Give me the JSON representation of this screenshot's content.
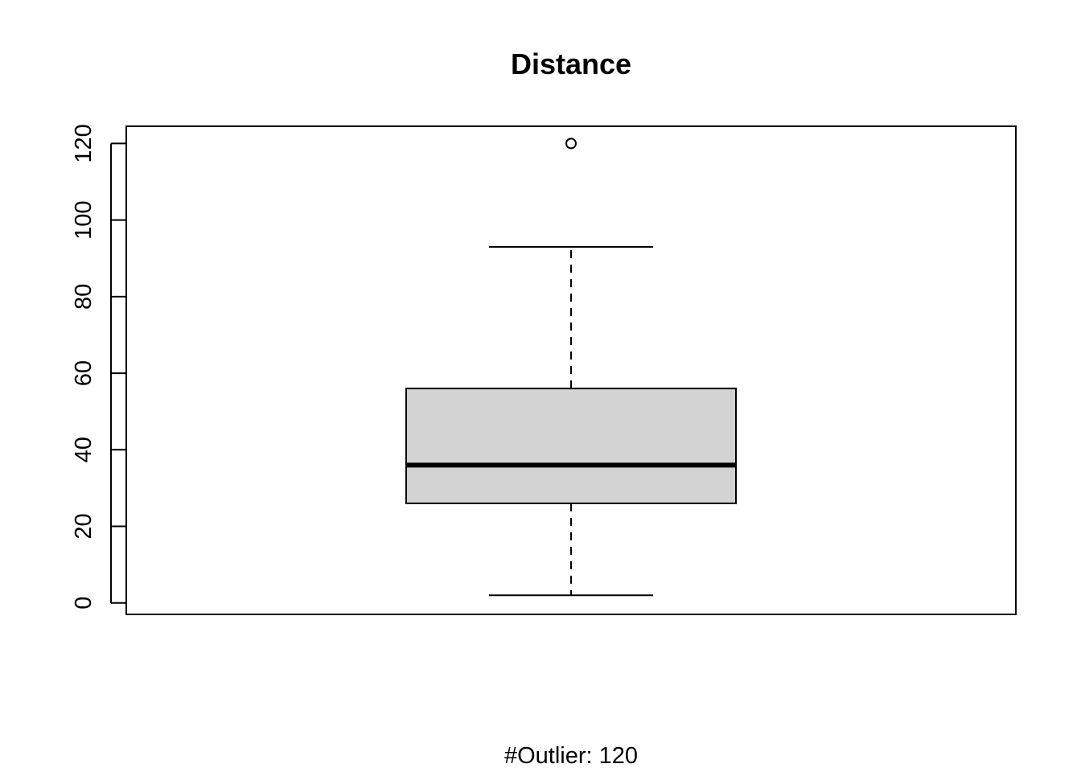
{
  "chart_data": {
    "type": "boxplot",
    "title": "Distance",
    "xlabel": "",
    "ylabel": "",
    "subtitle": "#Outlier: 120",
    "ylim": [
      -3,
      124.5
    ],
    "y_ticks": [
      0,
      20,
      40,
      60,
      80,
      100,
      120
    ],
    "grid": false,
    "legend": "none",
    "box": {
      "whisker_low": 2,
      "q1": 26,
      "median": 36,
      "q3": 56,
      "whisker_high": 93,
      "outliers": [
        120
      ]
    },
    "colors": {
      "box_fill": "#d3d3d3",
      "stroke": "#000000",
      "background": "#ffffff"
    }
  }
}
